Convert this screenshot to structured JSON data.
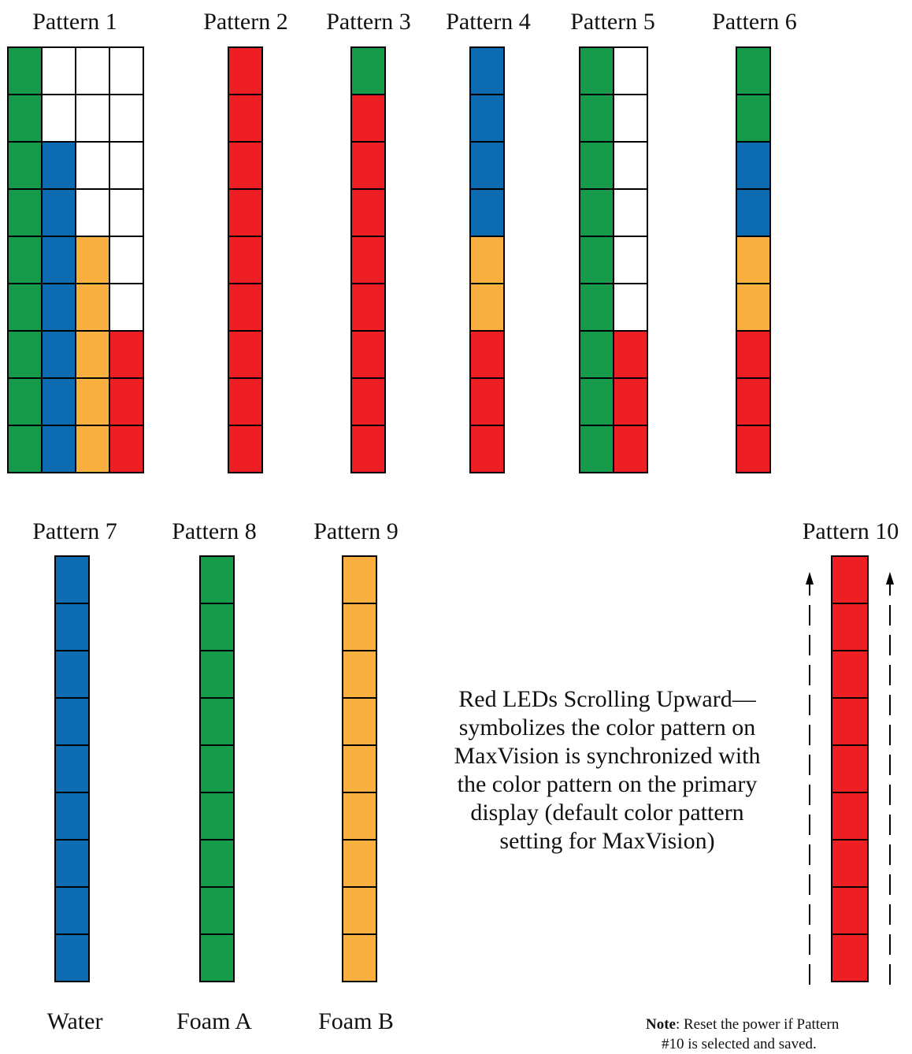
{
  "colors": {
    "green": "#159a4a",
    "blue": "#0c6bb1",
    "orange": "#f9b040",
    "red": "#ed1f24",
    "white": "#ffffff"
  },
  "patterns": [
    {
      "label": "Pattern 1",
      "caption": "",
      "columns": [
        [
          "green",
          "green",
          "green",
          "green",
          "green",
          "green",
          "green",
          "green",
          "green"
        ],
        [
          "white",
          "white",
          "blue",
          "blue",
          "blue",
          "blue",
          "blue",
          "blue",
          "blue"
        ],
        [
          "white",
          "white",
          "white",
          "white",
          "orange",
          "orange",
          "orange",
          "orange",
          "orange"
        ],
        [
          "white",
          "white",
          "white",
          "white",
          "white",
          "white",
          "red",
          "red",
          "red"
        ]
      ]
    },
    {
      "label": "Pattern 2",
      "caption": "",
      "columns": [
        [
          "red",
          "red",
          "red",
          "red",
          "red",
          "red",
          "red",
          "red",
          "red"
        ]
      ]
    },
    {
      "label": "Pattern 3",
      "caption": "",
      "columns": [
        [
          "green",
          "red",
          "red",
          "red",
          "red",
          "red",
          "red",
          "red",
          "red"
        ]
      ]
    },
    {
      "label": "Pattern 4",
      "caption": "",
      "columns": [
        [
          "blue",
          "blue",
          "blue",
          "blue",
          "orange",
          "orange",
          "red",
          "red",
          "red"
        ]
      ]
    },
    {
      "label": "Pattern 5",
      "caption": "",
      "columns": [
        [
          "green",
          "green",
          "green",
          "green",
          "green",
          "green",
          "green",
          "green",
          "green"
        ],
        [
          "white",
          "white",
          "white",
          "white",
          "white",
          "white",
          "red",
          "red",
          "red"
        ]
      ]
    },
    {
      "label": "Pattern 6",
      "caption": "",
      "columns": [
        [
          "green",
          "green",
          "blue",
          "blue",
          "orange",
          "orange",
          "red",
          "red",
          "red"
        ]
      ]
    },
    {
      "label": "Pattern 7",
      "caption": "Water",
      "columns": [
        [
          "blue",
          "blue",
          "blue",
          "blue",
          "blue",
          "blue",
          "blue",
          "blue",
          "blue"
        ]
      ]
    },
    {
      "label": "Pattern 8",
      "caption": "Foam A",
      "columns": [
        [
          "green",
          "green",
          "green",
          "green",
          "green",
          "green",
          "green",
          "green",
          "green"
        ]
      ]
    },
    {
      "label": "Pattern 9",
      "caption": "Foam B",
      "columns": [
        [
          "orange",
          "orange",
          "orange",
          "orange",
          "orange",
          "orange",
          "orange",
          "orange",
          "orange"
        ]
      ]
    },
    {
      "label": "Pattern 10",
      "caption": "",
      "columns": [
        [
          "red",
          "red",
          "red",
          "red",
          "red",
          "red",
          "red",
          "red",
          "red"
        ]
      ]
    }
  ],
  "description_lines": [
    "Red LEDs Scrolling Upward—",
    "symbolizes the color pattern on",
    "MaxVision is synchronized with",
    "the color pattern on the primary",
    "display (default color pattern",
    "setting for MaxVision)"
  ],
  "note": {
    "bold": "Note",
    "line1": ": Reset the power if Pattern",
    "line2": "#10 is selected and saved."
  }
}
